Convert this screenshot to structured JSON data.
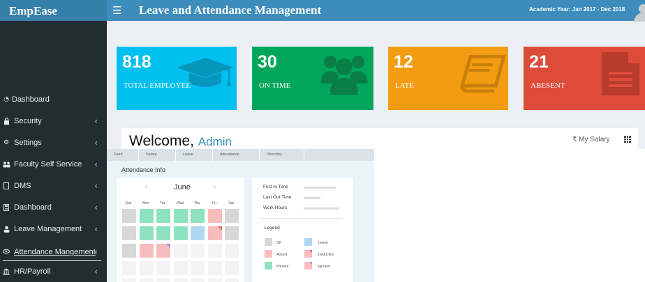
{
  "header": {
    "logo": "EmpEase",
    "menu_icon": "hamburger-icon",
    "title": "Leave and Attendance Management",
    "academic_year": "Academic Year: Jan 2017 - Dec 2018"
  },
  "sidebar": {
    "items": [
      {
        "label": "Dashboard",
        "icon": "dashboard-icon",
        "chevron": false
      },
      {
        "label": "Security",
        "icon": "lock-icon",
        "chevron": true
      },
      {
        "label": "Settings",
        "icon": "gears-icon",
        "chevron": true
      },
      {
        "label": "Faculty Self Service",
        "icon": "users-icon",
        "chevron": true
      },
      {
        "label": "DMS",
        "icon": "file-icon",
        "chevron": true
      },
      {
        "label": "Dashboard",
        "icon": "calculator-icon",
        "chevron": true
      },
      {
        "label": "Leave Management",
        "icon": "user-icon",
        "chevron": true
      },
      {
        "label": "Attendance Mangement",
        "icon": "eye-icon",
        "chevron": true
      },
      {
        "label": "HR/Payroll",
        "icon": "bank-icon",
        "chevron": true
      }
    ],
    "chevron_glyph": "‹"
  },
  "stats": [
    {
      "value": "818",
      "label": "TOTAL EMPLOYEE",
      "color": "#00c0ef",
      "icon": "graduation-cap-icon"
    },
    {
      "value": "30",
      "label": "ON TIME",
      "color": "#00a65a",
      "icon": "users-group-icon"
    },
    {
      "value": "12",
      "label": "LATE",
      "color": "#f39c12",
      "icon": "book-icon"
    },
    {
      "value": "21",
      "label": "ABESENT",
      "color": "#dd4b39",
      "icon": "document-icon"
    }
  ],
  "welcome": {
    "greeting": "Welcome,",
    "name": "Admin",
    "salary_link": "₹ My Salary"
  },
  "attendance_mock": {
    "tabs": [
      "Feed",
      "Salary",
      "Leave",
      "Attendance",
      "Directory"
    ],
    "heading": "Attendance Info",
    "month": "June",
    "days": [
      "Sun",
      "Mon",
      "Tue",
      "Wed",
      "Thu",
      "Fri",
      "Sat"
    ],
    "info_rows": [
      "First In Time",
      "Last Out Time",
      "Work Hours"
    ],
    "legend_title": "Legend",
    "legend": [
      {
        "label": "Off",
        "color": "#d7d7d7"
      },
      {
        "label": "Leave",
        "color": "#aed9f1"
      },
      {
        "label": "Absent",
        "color": "#f9bcbc"
      },
      {
        "label": "Deduction",
        "color": "#f9bcbc"
      },
      {
        "label": "Present",
        "color": "#8ee2c2"
      },
      {
        "label": "Ignored",
        "color": "#f9bcbc"
      }
    ]
  }
}
